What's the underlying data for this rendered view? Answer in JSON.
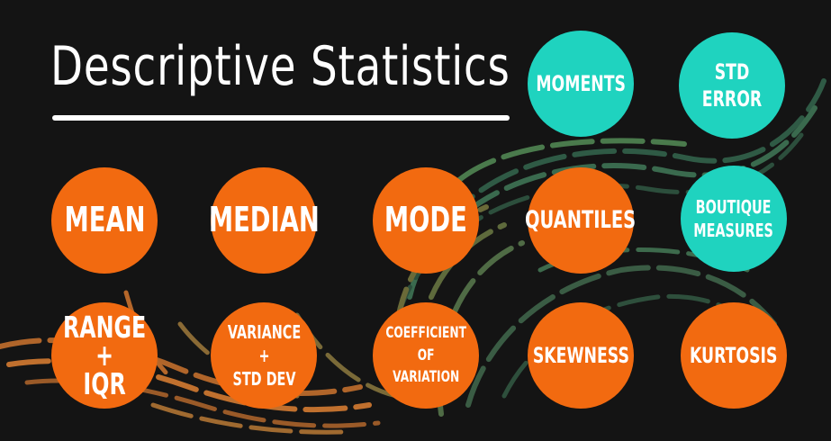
{
  "title": "Descriptive Statistics",
  "colors": {
    "background": "#141414",
    "orange": "#f26a10",
    "teal": "#1fd3bf",
    "title": "#ffffff",
    "swirl_green": "#3f6b52",
    "swirl_olive": "#6f6a35",
    "swirl_orange": "#a8642a"
  },
  "nodes": {
    "moments": "MOMENTS",
    "std_error": "STD ERROR",
    "mean": "MEAN",
    "median": "MEDIAN",
    "mode": "MODE",
    "quantiles": "QUANTILES",
    "boutique_measures": "BOUTIQUE\nMEASURES",
    "range_iqr": "RANGE\n+\nIQR",
    "variance_std_dev": "VARIANCE\n+\nSTD DEV",
    "coefficient_of_variation": "COEFFICIENT\nOF\nVARIATION",
    "skewness": "SKEWNESS",
    "kurtosis": "KURTOSIS"
  }
}
